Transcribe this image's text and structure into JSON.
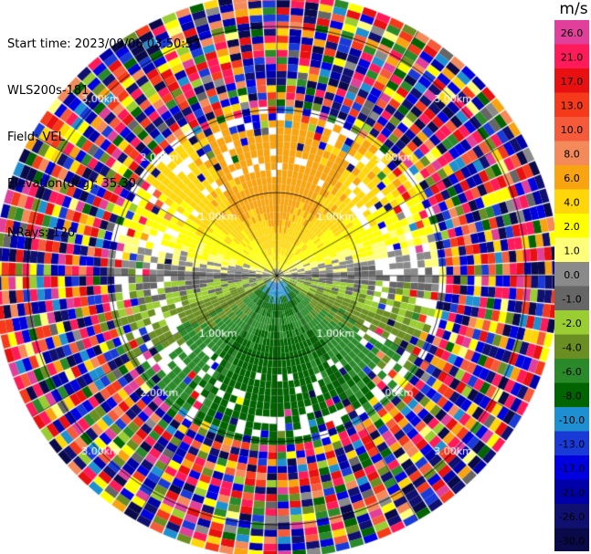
{
  "info": {
    "start_time": "Start time: 2023/09/06 03:50:53",
    "instrument": "WLS200s-181",
    "field": "Field: VEL",
    "elevation": "Elevation(deg): 35.30",
    "nrays": "NRays: 120"
  },
  "colorbar": {
    "unit": "m/s",
    "bins": [
      {
        "label": "26.0",
        "color": "#e0409a"
      },
      {
        "label": "21.0",
        "color": "#ff1a5a"
      },
      {
        "label": "17.0",
        "color": "#e81010"
      },
      {
        "label": "13.0",
        "color": "#f43a1a"
      },
      {
        "label": "10.0",
        "color": "#f55a3a"
      },
      {
        "label": "8.0",
        "color": "#f48a5a"
      },
      {
        "label": "6.0",
        "color": "#f8a410"
      },
      {
        "label": "4.0",
        "color": "#ffd60a"
      },
      {
        "label": "2.0",
        "color": "#ffff00"
      },
      {
        "label": "1.0",
        "color": "#ffff7a"
      },
      {
        "label": "0.0",
        "color": "#8a8a8a"
      },
      {
        "label": "-1.0",
        "color": "#666666"
      },
      {
        "label": "-2.0",
        "color": "#9acd32"
      },
      {
        "label": "-4.0",
        "color": "#6b8e23"
      },
      {
        "label": "-6.0",
        "color": "#2a8a2a"
      },
      {
        "label": "-8.0",
        "color": "#006400"
      },
      {
        "label": "-10.0",
        "color": "#1e8fd0"
      },
      {
        "label": "-13.0",
        "color": "#1a3ad8"
      },
      {
        "label": "-17.0",
        "color": "#0000e0"
      },
      {
        "label": "-21.0",
        "color": "#0000a8"
      },
      {
        "label": "-26.0",
        "color": "#101070"
      },
      {
        "label": "-30.0",
        "color": "#0a0a4a"
      }
    ]
  },
  "chart_data": {
    "type": "heatmap",
    "title": "",
    "field": "VEL",
    "units": "m/s",
    "projection": "polar PPI",
    "nrays": 120,
    "elevation_deg": 35.3,
    "range_rings_km": [
      1.0,
      2.0,
      3.0
    ],
    "ring_labels": [
      "1.00km",
      "2.00km",
      "3.00km"
    ],
    "azimuth_lines_deg": [
      0,
      30,
      60,
      90,
      120,
      150,
      180,
      210,
      240,
      270,
      300,
      330
    ],
    "max_range_km": 3.4,
    "color_levels": [
      -30.0,
      -26.0,
      -21.0,
      -17.0,
      -13.0,
      -10.0,
      -8.0,
      -6.0,
      -4.0,
      -2.0,
      -1.0,
      0.0,
      1.0,
      2.0,
      4.0,
      6.0,
      8.0,
      10.0,
      13.0,
      17.0,
      21.0,
      26.0
    ],
    "velocity_pattern": {
      "north_sector_near": "positive 4 to 8 m/s (orange/yellow)",
      "south_sector_near": "negative -2 to -13 m/s (green/blue)",
      "beyond_about_2km": "noisy values across full scale"
    }
  }
}
